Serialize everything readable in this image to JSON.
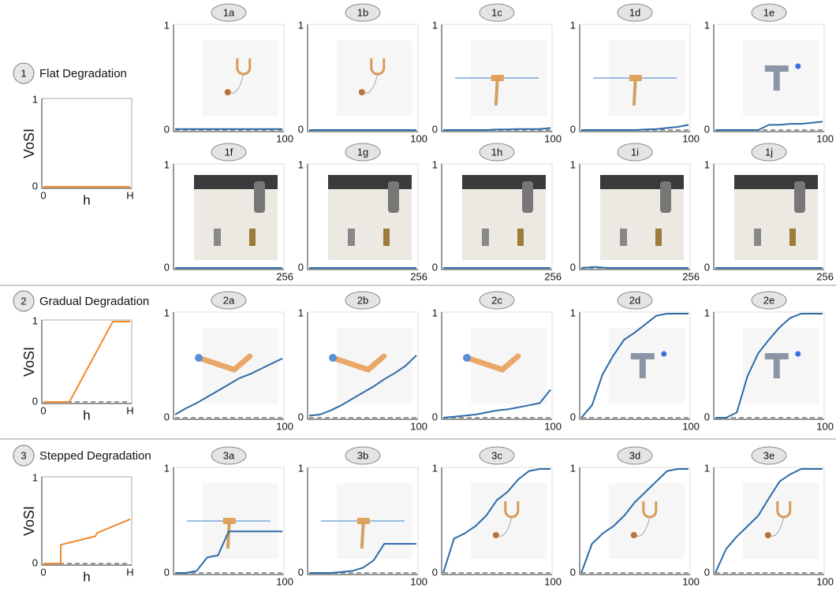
{
  "sections": [
    {
      "number": 1,
      "title": "Flat Degradation"
    },
    {
      "number": 2,
      "title": "Gradual Degradation"
    },
    {
      "number": 3,
      "title": "Stepped Degradation"
    }
  ],
  "chart_data": [
    {
      "type": "line",
      "ylabel": "VoSI",
      "xlabel": "h",
      "x": [
        0,
        1
      ],
      "series": [
        {
          "color": "#f0892a",
          "values": [
            0,
            0
          ]
        }
      ],
      "xlim": [
        0,
        1
      ],
      "ylim": [
        0,
        1
      ],
      "xticks": [
        0,
        {
          "value": 1,
          "label": "H"
        }
      ],
      "yticks": [
        0,
        1
      ],
      "reference": 0
    },
    {
      "type": "line",
      "title": "1a",
      "x": [
        0,
        10,
        20,
        30,
        40,
        50,
        60,
        70,
        80,
        90,
        100
      ],
      "series": [
        {
          "color": "#2c6aa8",
          "values": [
            0.01,
            0.01,
            0.01,
            0.01,
            0.01,
            0.01,
            0.01,
            0.01,
            0.01,
            0.01,
            0.01
          ]
        }
      ],
      "xlim": [
        0,
        100
      ],
      "ylim": [
        0,
        1
      ],
      "xticks": [
        100
      ],
      "yticks": [
        0,
        1
      ],
      "reference": 0
    },
    {
      "type": "line",
      "title": "1b",
      "x": [
        0,
        10,
        20,
        30,
        40,
        50,
        60,
        70,
        80,
        90,
        100
      ],
      "series": [
        {
          "color": "#2c6aa8",
          "values": [
            0,
            0,
            0,
            0,
            0,
            0,
            0,
            0,
            0,
            0,
            0
          ]
        }
      ],
      "xlim": [
        0,
        100
      ],
      "ylim": [
        0,
        1
      ],
      "xticks": [
        100
      ],
      "yticks": [
        0,
        1
      ],
      "reference": 0
    },
    {
      "type": "line",
      "title": "1c",
      "x": [
        0,
        10,
        20,
        30,
        40,
        50,
        60,
        70,
        80,
        90,
        100
      ],
      "series": [
        {
          "color": "#2c6aa8",
          "values": [
            0,
            0,
            0,
            0,
            0,
            0.005,
            0.005,
            0.01,
            0.01,
            0.01,
            0.02
          ]
        }
      ],
      "xlim": [
        0,
        100
      ],
      "ylim": [
        0,
        1
      ],
      "xticks": [
        100
      ],
      "yticks": [
        0,
        1
      ],
      "reference": 0
    },
    {
      "type": "line",
      "title": "1d",
      "x": [
        0,
        10,
        20,
        30,
        40,
        50,
        60,
        70,
        80,
        90,
        100
      ],
      "series": [
        {
          "color": "#2c6aa8",
          "values": [
            0,
            0,
            0,
            0,
            0,
            0,
            0.005,
            0.01,
            0.02,
            0.03,
            0.05
          ]
        }
      ],
      "xlim": [
        0,
        100
      ],
      "ylim": [
        0,
        1
      ],
      "xticks": [
        100
      ],
      "yticks": [
        0,
        1
      ],
      "reference": 0
    },
    {
      "type": "line",
      "title": "1e",
      "x": [
        0,
        10,
        20,
        30,
        40,
        50,
        60,
        70,
        80,
        90,
        100
      ],
      "series": [
        {
          "color": "#2c6aa8",
          "values": [
            0,
            0,
            0,
            0,
            0,
            0.05,
            0.05,
            0.06,
            0.06,
            0.07,
            0.08
          ]
        }
      ],
      "xlim": [
        0,
        100
      ],
      "ylim": [
        0,
        1
      ],
      "xticks": [
        100
      ],
      "yticks": [
        0,
        1
      ],
      "reference": 0
    },
    {
      "type": "line",
      "title": "1f",
      "x": [
        0,
        32,
        64,
        96,
        128,
        160,
        192,
        224,
        256
      ],
      "series": [
        {
          "color": "#2c6aa8",
          "values": [
            0,
            0,
            0,
            0,
            0,
            0,
            0,
            0,
            0
          ]
        }
      ],
      "xlim": [
        0,
        256
      ],
      "ylim": [
        0,
        1
      ],
      "xticks": [
        256
      ],
      "yticks": [
        0,
        1
      ],
      "reference": 0
    },
    {
      "type": "line",
      "title": "1g",
      "x": [
        0,
        32,
        64,
        96,
        128,
        160,
        192,
        224,
        256
      ],
      "series": [
        {
          "color": "#2c6aa8",
          "values": [
            0,
            0,
            0,
            0,
            0,
            0,
            0,
            0,
            0
          ]
        }
      ],
      "xlim": [
        0,
        256
      ],
      "ylim": [
        0,
        1
      ],
      "xticks": [
        256
      ],
      "yticks": [
        0,
        1
      ],
      "reference": 0
    },
    {
      "type": "line",
      "title": "1h",
      "x": [
        0,
        32,
        64,
        96,
        128,
        160,
        192,
        224,
        256
      ],
      "series": [
        {
          "color": "#2c6aa8",
          "values": [
            0,
            0,
            0,
            0,
            0,
            0,
            0,
            0,
            0
          ]
        }
      ],
      "xlim": [
        0,
        256
      ],
      "ylim": [
        0,
        1
      ],
      "xticks": [
        256
      ],
      "yticks": [
        0,
        1
      ],
      "reference": 0
    },
    {
      "type": "line",
      "title": "1i",
      "x": [
        0,
        32,
        64,
        96,
        128,
        160,
        192,
        224,
        256
      ],
      "series": [
        {
          "color": "#2c6aa8",
          "values": [
            0,
            0.01,
            0,
            0,
            0,
            0,
            0,
            0,
            0
          ]
        }
      ],
      "xlim": [
        0,
        256
      ],
      "ylim": [
        0,
        1
      ],
      "xticks": [
        256
      ],
      "yticks": [
        0,
        1
      ],
      "reference": 0
    },
    {
      "type": "line",
      "title": "1j",
      "x": [
        0,
        32,
        64,
        96,
        128,
        160,
        192,
        224,
        256
      ],
      "series": [
        {
          "color": "#2c6aa8",
          "values": [
            0,
            0,
            0,
            0,
            0,
            0,
            0,
            0,
            0
          ]
        }
      ],
      "xlim": [
        0,
        256
      ],
      "ylim": [
        0,
        1
      ],
      "xticks": [
        256
      ],
      "yticks": [
        0,
        1
      ],
      "reference": 0
    },
    {
      "type": "line",
      "ylabel": "VoSI",
      "xlabel": "h",
      "x": [
        0,
        0.3,
        0.8,
        1
      ],
      "series": [
        {
          "color": "#f0892a",
          "values": [
            0,
            0,
            1,
            1
          ]
        }
      ],
      "xlim": [
        0,
        1
      ],
      "ylim": [
        0,
        1
      ],
      "xticks": [
        0,
        {
          "value": 1,
          "label": "H"
        }
      ],
      "yticks": [
        0,
        1
      ],
      "reference": 0
    },
    {
      "type": "line",
      "title": "2a",
      "x": [
        0,
        10,
        20,
        30,
        40,
        50,
        60,
        70,
        80,
        90,
        100
      ],
      "series": [
        {
          "color": "#2c6aa8",
          "values": [
            0.03,
            0.09,
            0.14,
            0.2,
            0.26,
            0.32,
            0.38,
            0.42,
            0.47,
            0.52,
            0.57
          ]
        }
      ],
      "xlim": [
        0,
        100
      ],
      "ylim": [
        0,
        1
      ],
      "xticks": [
        100
      ],
      "yticks": [
        0,
        1
      ],
      "reference": 0
    },
    {
      "type": "line",
      "title": "2b",
      "x": [
        0,
        10,
        20,
        30,
        40,
        50,
        60,
        70,
        80,
        90,
        100
      ],
      "series": [
        {
          "color": "#2c6aa8",
          "values": [
            0.02,
            0.03,
            0.07,
            0.12,
            0.18,
            0.24,
            0.3,
            0.37,
            0.43,
            0.5,
            0.6
          ]
        }
      ],
      "xlim": [
        0,
        100
      ],
      "ylim": [
        0,
        1
      ],
      "xticks": [
        100
      ],
      "yticks": [
        0,
        1
      ],
      "reference": 0
    },
    {
      "type": "line",
      "title": "2c",
      "x": [
        0,
        10,
        20,
        30,
        40,
        50,
        60,
        70,
        80,
        90,
        100
      ],
      "series": [
        {
          "color": "#2c6aa8",
          "values": [
            0,
            0.01,
            0.02,
            0.03,
            0.05,
            0.07,
            0.08,
            0.1,
            0.12,
            0.14,
            0.27
          ]
        }
      ],
      "xlim": [
        0,
        100
      ],
      "ylim": [
        0,
        1
      ],
      "xticks": [
        100
      ],
      "yticks": [
        0,
        1
      ],
      "reference": 0
    },
    {
      "type": "line",
      "title": "2d",
      "x": [
        0,
        10,
        20,
        30,
        40,
        50,
        60,
        70,
        80,
        90,
        100
      ],
      "series": [
        {
          "color": "#2c6aa8",
          "values": [
            0,
            0.12,
            0.42,
            0.6,
            0.75,
            0.82,
            0.9,
            0.98,
            1,
            1,
            1
          ]
        }
      ],
      "xlim": [
        0,
        100
      ],
      "ylim": [
        0,
        1
      ],
      "xticks": [
        100
      ],
      "yticks": [
        0,
        1
      ],
      "reference": 0
    },
    {
      "type": "line",
      "title": "2e",
      "x": [
        0,
        10,
        20,
        30,
        40,
        50,
        60,
        70,
        80,
        90,
        100
      ],
      "series": [
        {
          "color": "#2c6aa8",
          "values": [
            0,
            0,
            0.05,
            0.4,
            0.62,
            0.75,
            0.87,
            0.96,
            1,
            1,
            1
          ]
        }
      ],
      "xlim": [
        0,
        100
      ],
      "ylim": [
        0,
        1
      ],
      "xticks": [
        100
      ],
      "yticks": [
        0,
        1
      ],
      "reference": 0
    },
    {
      "type": "line",
      "ylabel": "VoSI",
      "xlabel": "h",
      "x": [
        0,
        0.2,
        0.2,
        0.6,
        0.62,
        1
      ],
      "series": [
        {
          "color": "#f0892a",
          "values": [
            0,
            0,
            0.22,
            0.32,
            0.36,
            0.52
          ]
        }
      ],
      "xlim": [
        0,
        1
      ],
      "ylim": [
        0,
        1
      ],
      "xticks": [
        0,
        {
          "value": 1,
          "label": "H"
        }
      ],
      "yticks": [
        0,
        1
      ],
      "reference": 0
    },
    {
      "type": "line",
      "title": "3a",
      "x": [
        0,
        10,
        20,
        30,
        40,
        50,
        60,
        70,
        80,
        90,
        100
      ],
      "series": [
        {
          "color": "#2c6aa8",
          "values": [
            0,
            0,
            0.02,
            0.15,
            0.17,
            0.4,
            0.4,
            0.4,
            0.4,
            0.4,
            0.4
          ]
        }
      ],
      "xlim": [
        0,
        100
      ],
      "ylim": [
        0,
        1
      ],
      "xticks": [
        100
      ],
      "yticks": [
        0,
        1
      ],
      "reference": 0
    },
    {
      "type": "line",
      "title": "3b",
      "x": [
        0,
        10,
        20,
        30,
        40,
        50,
        60,
        70,
        80,
        90,
        100
      ],
      "series": [
        {
          "color": "#2c6aa8",
          "values": [
            0,
            0,
            0,
            0.01,
            0.02,
            0.05,
            0.12,
            0.28,
            0.28,
            0.28,
            0.28
          ]
        }
      ],
      "xlim": [
        0,
        100
      ],
      "ylim": [
        0,
        1
      ],
      "xticks": [
        100
      ],
      "yticks": [
        0,
        1
      ],
      "reference": 0
    },
    {
      "type": "line",
      "title": "3c",
      "x": [
        0,
        10,
        20,
        30,
        40,
        50,
        60,
        70,
        80,
        90,
        100
      ],
      "series": [
        {
          "color": "#2c6aa8",
          "values": [
            0,
            0.33,
            0.38,
            0.45,
            0.55,
            0.7,
            0.78,
            0.9,
            0.98,
            1,
            1
          ]
        }
      ],
      "xlim": [
        0,
        100
      ],
      "ylim": [
        0,
        1
      ],
      "xticks": [
        100
      ],
      "yticks": [
        0,
        1
      ],
      "reference": 0
    },
    {
      "type": "line",
      "title": "3d",
      "x": [
        0,
        10,
        20,
        30,
        40,
        50,
        60,
        70,
        80,
        90,
        100
      ],
      "series": [
        {
          "color": "#2c6aa8",
          "values": [
            0,
            0.28,
            0.38,
            0.45,
            0.55,
            0.68,
            0.78,
            0.88,
            0.98,
            1,
            1
          ]
        }
      ],
      "xlim": [
        0,
        100
      ],
      "ylim": [
        0,
        1
      ],
      "xticks": [
        100
      ],
      "yticks": [
        0,
        1
      ],
      "reference": 0
    },
    {
      "type": "line",
      "title": "3e",
      "x": [
        0,
        10,
        20,
        30,
        40,
        50,
        60,
        70,
        80,
        90,
        100
      ],
      "series": [
        {
          "color": "#2c6aa8",
          "values": [
            0,
            0.23,
            0.35,
            0.45,
            0.55,
            0.72,
            0.88,
            0.95,
            1,
            1,
            1
          ]
        }
      ],
      "xlim": [
        0,
        100
      ],
      "ylim": [
        0,
        1
      ],
      "xticks": [
        100
      ],
      "yticks": [
        0,
        1
      ],
      "reference": 0
    }
  ]
}
